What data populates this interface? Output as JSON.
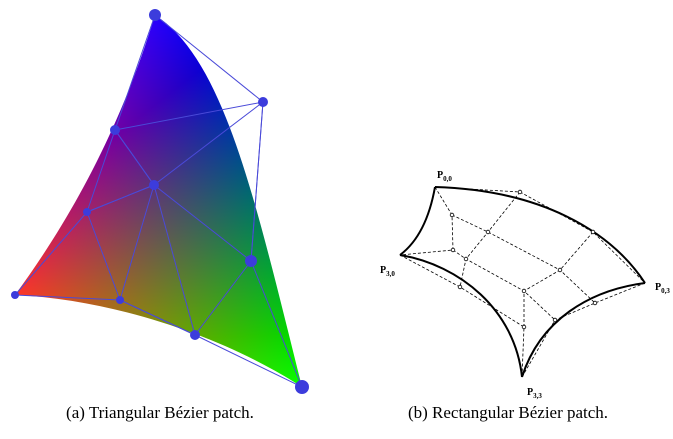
{
  "figure": {
    "panels": [
      {
        "caption": "(a) Triangular Bézier patch."
      },
      {
        "caption": "(b) Rectangular Bézier patch.",
        "labels": [
          {
            "main": "P",
            "sub": "0,0"
          },
          {
            "main": "P",
            "sub": "3,0"
          },
          {
            "main": "P",
            "sub": "0,3"
          },
          {
            "main": "P",
            "sub": "3,3"
          }
        ]
      }
    ]
  }
}
